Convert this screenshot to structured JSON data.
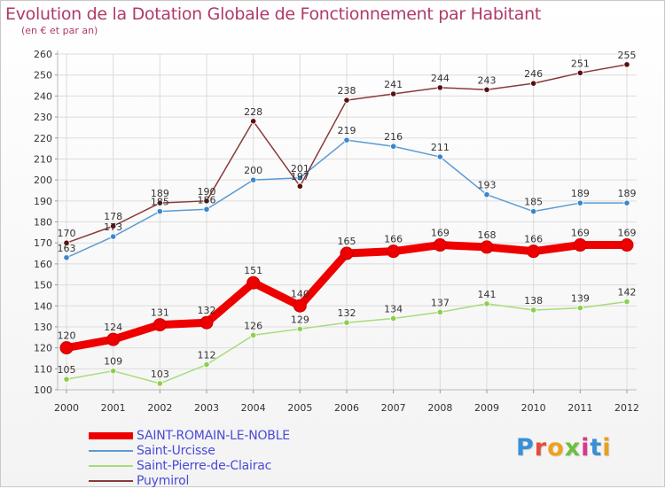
{
  "header": {
    "title": "Evolution de la Dotation Globale de Fonctionnement par Habitant",
    "subtitle": "(en € et par an)"
  },
  "logo": {
    "text": "Proxiti",
    "letter_colors": [
      "#3a8fd8",
      "#e84b3a",
      "#f0a020",
      "#6cc040",
      "#d83a8a",
      "#3a8fd8",
      "#e8a020"
    ]
  },
  "chart_data": {
    "type": "line",
    "title": "Evolution de la Dotation Globale de Fonctionnement par Habitant",
    "subtitle": "(en € et par an)",
    "x": [
      "2000",
      "2001",
      "2002",
      "2003",
      "2004",
      "2005",
      "2006",
      "2007",
      "2008",
      "2009",
      "2010",
      "2011",
      "2012"
    ],
    "ylim": [
      100,
      260
    ],
    "yticks": [
      100,
      110,
      120,
      130,
      140,
      150,
      160,
      170,
      180,
      190,
      200,
      210,
      220,
      230,
      240,
      250,
      260
    ],
    "grid": true,
    "legend_position": "bottom-left",
    "series": [
      {
        "name": "SAINT-ROMAIN-LE-NOBLE",
        "color": "#ee0000",
        "marker_color": "#ee0000",
        "emphasis": "thick",
        "values": [
          120,
          124,
          131,
          132,
          151,
          140,
          165,
          166,
          169,
          168,
          166,
          169,
          169
        ]
      },
      {
        "name": "Saint-Urcisse",
        "color": "#5b9bd5",
        "marker_color": "#3a86cc",
        "emphasis": "thin",
        "values": [
          163,
          173,
          185,
          186,
          200,
          201,
          219,
          216,
          211,
          193,
          185,
          189,
          189
        ]
      },
      {
        "name": "Saint-Pierre-de-Clairac",
        "color": "#a6dc7a",
        "marker_color": "#8ad04a",
        "emphasis": "thin",
        "values": [
          105,
          109,
          103,
          112,
          126,
          129,
          132,
          134,
          137,
          141,
          138,
          139,
          142
        ]
      },
      {
        "name": "Puymirol",
        "color": "#8b3a3a",
        "marker_color": "#5a1010",
        "emphasis": "thin",
        "values": [
          170,
          178,
          189,
          190,
          228,
          197,
          238,
          241,
          244,
          243,
          246,
          251,
          255
        ]
      }
    ]
  }
}
